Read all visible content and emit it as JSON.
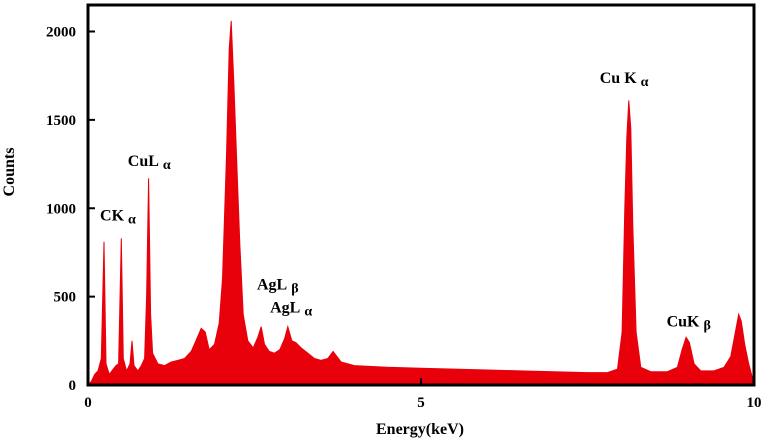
{
  "chart_data": {
    "type": "area",
    "xlabel": "Energy(keV)",
    "ylabel": "Counts",
    "xlim": [
      0,
      10
    ],
    "ylim": [
      0,
      2150
    ],
    "x_ticks": [
      0,
      5,
      10
    ],
    "y_ticks": [
      0,
      500,
      1000,
      1500,
      2000
    ],
    "grid": false,
    "series": [
      {
        "color": "#e8000b",
        "points": [
          [
            0.0,
            0
          ],
          [
            0.05,
            20
          ],
          [
            0.1,
            60
          ],
          [
            0.15,
            80
          ],
          [
            0.2,
            150
          ],
          [
            0.24,
            810
          ],
          [
            0.27,
            120
          ],
          [
            0.32,
            60
          ],
          [
            0.38,
            90
          ],
          [
            0.42,
            110
          ],
          [
            0.46,
            120
          ],
          [
            0.5,
            830
          ],
          [
            0.53,
            150
          ],
          [
            0.58,
            80
          ],
          [
            0.63,
            120
          ],
          [
            0.66,
            250
          ],
          [
            0.69,
            110
          ],
          [
            0.75,
            80
          ],
          [
            0.8,
            110
          ],
          [
            0.85,
            150
          ],
          [
            0.88,
            500
          ],
          [
            0.91,
            1170
          ],
          [
            0.94,
            400
          ],
          [
            0.97,
            180
          ],
          [
            1.05,
            120
          ],
          [
            1.15,
            110
          ],
          [
            1.25,
            130
          ],
          [
            1.35,
            140
          ],
          [
            1.45,
            150
          ],
          [
            1.55,
            190
          ],
          [
            1.62,
            250
          ],
          [
            1.7,
            320
          ],
          [
            1.76,
            300
          ],
          [
            1.82,
            200
          ],
          [
            1.9,
            230
          ],
          [
            1.97,
            350
          ],
          [
            2.02,
            600
          ],
          [
            2.08,
            1300
          ],
          [
            2.12,
            1900
          ],
          [
            2.15,
            2060
          ],
          [
            2.19,
            1700
          ],
          [
            2.23,
            1300
          ],
          [
            2.28,
            800
          ],
          [
            2.33,
            400
          ],
          [
            2.4,
            250
          ],
          [
            2.48,
            210
          ],
          [
            2.55,
            270
          ],
          [
            2.6,
            330
          ],
          [
            2.65,
            230
          ],
          [
            2.72,
            190
          ],
          [
            2.8,
            180
          ],
          [
            2.88,
            200
          ],
          [
            2.95,
            260
          ],
          [
            3.0,
            330
          ],
          [
            3.06,
            250
          ],
          [
            3.12,
            240
          ],
          [
            3.2,
            210
          ],
          [
            3.3,
            180
          ],
          [
            3.4,
            150
          ],
          [
            3.5,
            140
          ],
          [
            3.6,
            150
          ],
          [
            3.68,
            190
          ],
          [
            3.72,
            170
          ],
          [
            3.8,
            130
          ],
          [
            4.0,
            110
          ],
          [
            4.5,
            100
          ],
          [
            5.0,
            95
          ],
          [
            5.5,
            90
          ],
          [
            6.0,
            85
          ],
          [
            6.5,
            80
          ],
          [
            7.0,
            75
          ],
          [
            7.5,
            70
          ],
          [
            7.8,
            70
          ],
          [
            7.95,
            90
          ],
          [
            8.02,
            300
          ],
          [
            8.06,
            1000
          ],
          [
            8.09,
            1400
          ],
          [
            8.12,
            1610
          ],
          [
            8.15,
            1450
          ],
          [
            8.18,
            900
          ],
          [
            8.23,
            300
          ],
          [
            8.3,
            100
          ],
          [
            8.45,
            75
          ],
          [
            8.7,
            75
          ],
          [
            8.85,
            100
          ],
          [
            8.92,
            200
          ],
          [
            8.98,
            270
          ],
          [
            9.03,
            240
          ],
          [
            9.1,
            120
          ],
          [
            9.2,
            80
          ],
          [
            9.4,
            80
          ],
          [
            9.55,
            100
          ],
          [
            9.65,
            160
          ],
          [
            9.72,
            300
          ],
          [
            9.77,
            400
          ],
          [
            9.81,
            360
          ],
          [
            9.86,
            230
          ],
          [
            9.92,
            120
          ],
          [
            9.97,
            50
          ],
          [
            10.0,
            0
          ]
        ]
      }
    ],
    "annotations": [
      {
        "text": "CK",
        "sub": "α",
        "x": 0.45,
        "y": 930
      },
      {
        "text": "CuL",
        "sub": "α",
        "x": 0.92,
        "y": 1240
      },
      {
        "text": "AgL",
        "sub": "β",
        "x": 2.85,
        "y": 540
      },
      {
        "text": "AgL",
        "sub": "α",
        "x": 3.05,
        "y": 410
      },
      {
        "text": "Cu K",
        "sub": "α",
        "x": 8.05,
        "y": 1710
      },
      {
        "text": "CuK",
        "sub": "β",
        "x": 9.02,
        "y": 330
      }
    ]
  }
}
